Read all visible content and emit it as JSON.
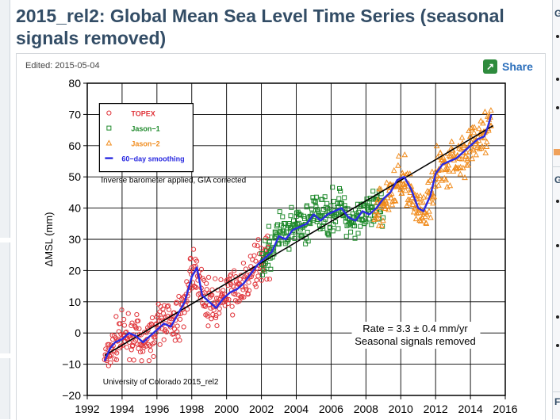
{
  "heading": "2015_rel2: Global Mean Sea Level Time Series (seasonal signals removed)",
  "edited": "Edited: 2015-05-04",
  "share_label": "Share",
  "icons": {
    "share": "share-icon"
  },
  "sidebar_right": {
    "letters": [
      "G",
      "G",
      "F"
    ]
  },
  "colors": {
    "topex": "#e0343a",
    "jason1": "#1f8a2c",
    "jason2": "#f08c1e",
    "smooth": "#2a2ae0",
    "title": "#334d66"
  },
  "chart_data": {
    "type": "scatter",
    "title": "Global Mean Sea Level Time Series (seasonal signals removed)",
    "xlabel": "",
    "ylabel": "ΔMSL (mm)",
    "xlim": [
      1992,
      2016
    ],
    "ylim": [
      -20,
      80
    ],
    "x_ticks": [
      1992,
      1994,
      1996,
      1998,
      2000,
      2002,
      2004,
      2006,
      2008,
      2010,
      2012,
      2014,
      2016
    ],
    "y_ticks": [
      -20,
      -10,
      0,
      10,
      20,
      30,
      40,
      50,
      60,
      70,
      80
    ],
    "grid": true,
    "legend_position": "top-left",
    "legend": [
      {
        "name": "TOPEX",
        "marker": "circle"
      },
      {
        "name": "Jason−1",
        "marker": "square"
      },
      {
        "name": "Jason−2",
        "marker": "triangle"
      },
      {
        "name": "60−day smoothing",
        "marker": "line"
      }
    ],
    "annotation_correction": "Inverse barometer applied, GIA corrected",
    "annotation_rate": "Rate = 3.3 ± 0.4 mm/yr",
    "annotation_seasonal": "Seasonal signals removed",
    "annotation_credit": "University of Colorado 2015_rel2",
    "trend": {
      "start": [
        1993.0,
        -7.2
      ],
      "end": [
        2015.3,
        66.4
      ],
      "rate_mm_per_yr": 3.3
    },
    "series": [
      {
        "name": "TOPEX",
        "marker": "circle",
        "range": [
          1993.0,
          2002.5
        ],
        "anchors": [
          [
            1993.0,
            -8
          ],
          [
            1993.5,
            -3
          ],
          [
            1994.0,
            -1
          ],
          [
            1994.5,
            0
          ],
          [
            1995.0,
            -3
          ],
          [
            1995.5,
            -2
          ],
          [
            1996.0,
            2
          ],
          [
            1996.5,
            5
          ],
          [
            1997.0,
            2
          ],
          [
            1997.5,
            8
          ],
          [
            1998.0,
            18
          ],
          [
            1998.3,
            21
          ],
          [
            1998.7,
            12
          ],
          [
            1999.0,
            10
          ],
          [
            1999.5,
            9
          ],
          [
            2000.0,
            12
          ],
          [
            2000.5,
            14
          ],
          [
            2001.0,
            15
          ],
          [
            2001.5,
            20
          ],
          [
            2002.0,
            23
          ],
          [
            2002.5,
            24
          ]
        ]
      },
      {
        "name": "Jason−1",
        "marker": "square",
        "range": [
          2002.0,
          2009.0
        ],
        "anchors": [
          [
            2002.0,
            24
          ],
          [
            2002.5,
            26
          ],
          [
            2003.0,
            33
          ],
          [
            2003.5,
            30
          ],
          [
            2004.0,
            35
          ],
          [
            2004.5,
            34
          ],
          [
            2005.0,
            38
          ],
          [
            2005.5,
            37
          ],
          [
            2006.0,
            39
          ],
          [
            2006.5,
            40
          ],
          [
            2007.0,
            37
          ],
          [
            2007.5,
            37
          ],
          [
            2008.0,
            38
          ],
          [
            2008.5,
            39
          ],
          [
            2009.0,
            40
          ]
        ]
      },
      {
        "name": "Jason−2",
        "marker": "triangle",
        "range": [
          2008.5,
          2015.2
        ],
        "anchors": [
          [
            2008.5,
            40
          ],
          [
            2009.0,
            42
          ],
          [
            2009.5,
            45
          ],
          [
            2010.0,
            50
          ],
          [
            2010.5,
            46
          ],
          [
            2011.0,
            40
          ],
          [
            2011.3,
            38
          ],
          [
            2011.7,
            43
          ],
          [
            2012.0,
            52
          ],
          [
            2012.5,
            54
          ],
          [
            2013.0,
            56
          ],
          [
            2013.5,
            57
          ],
          [
            2014.0,
            60
          ],
          [
            2014.5,
            62
          ],
          [
            2015.0,
            65
          ],
          [
            2015.2,
            69
          ]
        ]
      }
    ],
    "smoothing": {
      "name": "60−day smoothing",
      "points": [
        [
          1993.0,
          -9
        ],
        [
          1993.3,
          -5
        ],
        [
          1993.6,
          -3
        ],
        [
          1994.0,
          -2
        ],
        [
          1994.4,
          0
        ],
        [
          1994.8,
          -1
        ],
        [
          1995.2,
          -3
        ],
        [
          1995.6,
          -1
        ],
        [
          1996.0,
          1
        ],
        [
          1996.4,
          3
        ],
        [
          1996.8,
          2
        ],
        [
          1997.2,
          6
        ],
        [
          1997.6,
          10
        ],
        [
          1998.0,
          18
        ],
        [
          1998.3,
          21
        ],
        [
          1998.6,
          12
        ],
        [
          1999.0,
          10
        ],
        [
          1999.4,
          8
        ],
        [
          1999.8,
          11
        ],
        [
          2000.2,
          13
        ],
        [
          2000.6,
          14
        ],
        [
          2001.0,
          16
        ],
        [
          2001.4,
          19
        ],
        [
          2001.8,
          22
        ],
        [
          2002.2,
          24
        ],
        [
          2002.6,
          26
        ],
        [
          2003.0,
          31
        ],
        [
          2003.4,
          30
        ],
        [
          2003.8,
          33
        ],
        [
          2004.2,
          34
        ],
        [
          2004.6,
          35
        ],
        [
          2005.0,
          38
        ],
        [
          2005.4,
          36
        ],
        [
          2005.8,
          38
        ],
        [
          2006.2,
          39
        ],
        [
          2006.6,
          40
        ],
        [
          2007.0,
          37
        ],
        [
          2007.4,
          36
        ],
        [
          2007.8,
          39
        ],
        [
          2008.2,
          38
        ],
        [
          2008.6,
          40
        ],
        [
          2009.0,
          43
        ],
        [
          2009.4,
          45
        ],
        [
          2009.8,
          49
        ],
        [
          2010.2,
          50
        ],
        [
          2010.6,
          46
        ],
        [
          2011.0,
          40
        ],
        [
          2011.3,
          39
        ],
        [
          2011.7,
          44
        ],
        [
          2012.0,
          51
        ],
        [
          2012.4,
          54
        ],
        [
          2012.8,
          55
        ],
        [
          2013.2,
          56
        ],
        [
          2013.6,
          58
        ],
        [
          2014.0,
          60
        ],
        [
          2014.4,
          62
        ],
        [
          2014.8,
          63
        ],
        [
          2015.0,
          66
        ],
        [
          2015.2,
          70
        ]
      ]
    }
  }
}
